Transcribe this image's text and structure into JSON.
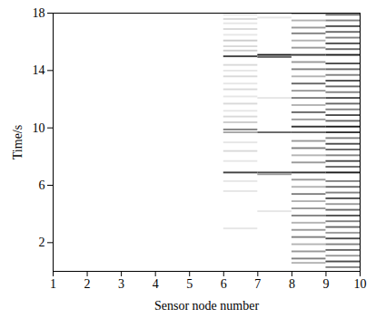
{
  "chart_data": {
    "type": "heatmap",
    "x_label": "Sensor node number",
    "y_label": "Time/s",
    "xlim": [
      1,
      10
    ],
    "xticks": [
      1,
      2,
      3,
      4,
      5,
      6,
      7,
      8,
      9,
      10
    ],
    "ylim": [
      0,
      18
    ],
    "yticks": [
      2,
      6,
      10,
      14,
      18
    ],
    "zlim": [
      0,
      1
    ],
    "grid": false,
    "cells": [
      [
        6,
        7,
        17.8,
        17.92,
        0.1
      ],
      [
        6,
        7,
        17.5,
        17.62,
        0.15
      ],
      [
        6,
        7,
        17.2,
        17.32,
        0.1
      ],
      [
        6,
        7,
        16.8,
        16.92,
        0.15
      ],
      [
        6,
        7,
        16.4,
        16.52,
        0.1
      ],
      [
        6,
        7,
        16.0,
        16.12,
        0.2
      ],
      [
        6,
        7,
        15.6,
        15.72,
        0.15
      ],
      [
        6,
        7,
        15.3,
        15.42,
        0.2
      ],
      [
        6,
        7,
        14.9,
        15.02,
        0.75
      ],
      [
        6,
        7,
        14.3,
        14.42,
        0.15
      ],
      [
        6,
        7,
        13.9,
        14.02,
        0.1
      ],
      [
        6,
        7,
        13.5,
        13.62,
        0.15
      ],
      [
        6,
        7,
        13.0,
        13.12,
        0.1
      ],
      [
        6,
        7,
        12.6,
        12.72,
        0.15
      ],
      [
        6,
        7,
        12.1,
        12.22,
        0.1
      ],
      [
        6,
        7,
        11.6,
        11.72,
        0.15
      ],
      [
        6,
        7,
        11.1,
        11.22,
        0.1
      ],
      [
        6,
        7,
        10.7,
        10.82,
        0.15
      ],
      [
        6,
        7,
        10.3,
        10.42,
        0.2
      ],
      [
        6,
        7,
        9.8,
        9.92,
        0.5
      ],
      [
        6,
        7,
        9.6,
        9.72,
        0.35
      ],
      [
        6,
        7,
        8.9,
        9.02,
        0.1
      ],
      [
        6,
        7,
        8.3,
        8.42,
        0.15
      ],
      [
        6,
        7,
        7.6,
        7.72,
        0.1
      ],
      [
        6,
        7,
        6.8,
        6.92,
        0.75
      ],
      [
        6,
        7,
        6.2,
        6.32,
        0.1
      ],
      [
        6,
        7,
        5.5,
        5.62,
        0.1
      ],
      [
        6,
        7,
        2.9,
        3.02,
        0.1
      ],
      [
        7,
        8,
        17.6,
        17.72,
        0.1
      ],
      [
        7,
        8,
        15.0,
        15.12,
        0.9
      ],
      [
        7,
        8,
        14.85,
        14.97,
        0.6
      ],
      [
        7,
        8,
        12.0,
        12.12,
        0.1
      ],
      [
        7,
        8,
        9.6,
        9.72,
        0.6
      ],
      [
        7,
        8,
        6.8,
        6.92,
        0.7
      ],
      [
        7,
        8,
        6.68,
        6.8,
        0.4
      ],
      [
        7,
        8,
        4.1,
        4.22,
        0.1
      ],
      [
        8,
        9,
        17.9,
        18.0,
        0.5
      ],
      [
        8,
        9,
        17.4,
        17.52,
        0.3
      ],
      [
        8,
        9,
        16.9,
        17.02,
        0.4
      ],
      [
        8,
        9,
        16.5,
        16.62,
        0.5
      ],
      [
        8,
        9,
        16.0,
        16.12,
        0.3
      ],
      [
        8,
        9,
        15.5,
        15.62,
        0.4
      ],
      [
        8,
        9,
        15.0,
        15.12,
        0.8
      ],
      [
        8,
        9,
        14.5,
        14.62,
        0.4
      ],
      [
        8,
        9,
        14.0,
        14.12,
        0.5
      ],
      [
        8,
        9,
        13.5,
        13.62,
        0.3
      ],
      [
        8,
        9,
        13.0,
        13.12,
        0.6
      ],
      [
        8,
        9,
        12.5,
        12.62,
        0.4
      ],
      [
        8,
        9,
        12.0,
        12.12,
        0.5
      ],
      [
        8,
        9,
        11.5,
        11.62,
        0.3
      ],
      [
        8,
        9,
        11.0,
        11.12,
        0.6
      ],
      [
        8,
        9,
        10.5,
        10.62,
        0.4
      ],
      [
        8,
        9,
        10.0,
        10.12,
        0.8
      ],
      [
        8,
        9,
        9.6,
        9.72,
        0.6
      ],
      [
        8,
        9,
        9.0,
        9.12,
        0.4
      ],
      [
        8,
        9,
        8.5,
        8.62,
        0.5
      ],
      [
        8,
        9,
        8.0,
        8.12,
        0.3
      ],
      [
        8,
        9,
        7.5,
        7.62,
        0.4
      ],
      [
        8,
        9,
        6.8,
        6.92,
        0.8
      ],
      [
        8,
        9,
        6.3,
        6.42,
        0.4
      ],
      [
        8,
        9,
        5.8,
        5.92,
        0.3
      ],
      [
        8,
        9,
        5.3,
        5.42,
        0.5
      ],
      [
        8,
        9,
        4.8,
        4.92,
        0.3
      ],
      [
        8,
        9,
        4.3,
        4.42,
        0.4
      ],
      [
        8,
        9,
        3.8,
        3.92,
        0.5
      ],
      [
        8,
        9,
        3.3,
        3.42,
        0.3
      ],
      [
        8,
        9,
        2.8,
        2.92,
        0.4
      ],
      [
        8,
        9,
        2.3,
        2.42,
        0.5
      ],
      [
        8,
        9,
        1.8,
        1.92,
        0.3
      ],
      [
        8,
        9,
        1.3,
        1.42,
        0.4
      ],
      [
        8,
        9,
        0.8,
        0.92,
        0.5
      ],
      [
        8,
        9,
        0.5,
        0.62,
        0.3
      ],
      [
        9,
        10,
        0.2,
        0.32,
        0.5
      ],
      [
        9,
        10,
        0.6,
        0.72,
        0.7
      ],
      [
        9,
        10,
        1.0,
        1.12,
        0.4
      ],
      [
        9,
        10,
        1.4,
        1.52,
        0.6
      ],
      [
        9,
        10,
        1.8,
        1.92,
        0.5
      ],
      [
        9,
        10,
        2.2,
        2.32,
        0.7
      ],
      [
        9,
        10,
        2.6,
        2.72,
        0.4
      ],
      [
        9,
        10,
        3.0,
        3.12,
        0.6
      ],
      [
        9,
        10,
        3.4,
        3.52,
        0.5
      ],
      [
        9,
        10,
        3.8,
        3.92,
        0.7
      ],
      [
        9,
        10,
        4.2,
        4.32,
        0.6
      ],
      [
        9,
        10,
        4.6,
        4.72,
        0.4
      ],
      [
        9,
        10,
        5.0,
        5.12,
        0.7
      ],
      [
        9,
        10,
        5.4,
        5.52,
        0.5
      ],
      [
        9,
        10,
        5.8,
        5.92,
        0.6
      ],
      [
        9,
        10,
        6.2,
        6.32,
        0.5
      ],
      [
        9,
        10,
        6.8,
        6.92,
        0.9
      ],
      [
        9,
        10,
        7.2,
        7.32,
        0.6
      ],
      [
        9,
        10,
        7.6,
        7.72,
        0.7
      ],
      [
        9,
        10,
        8.0,
        8.12,
        0.5
      ],
      [
        9,
        10,
        8.4,
        8.52,
        0.6
      ],
      [
        9,
        10,
        8.8,
        8.92,
        0.7
      ],
      [
        9,
        10,
        9.2,
        9.32,
        0.5
      ],
      [
        9,
        10,
        9.6,
        9.72,
        0.8
      ],
      [
        9,
        10,
        10.0,
        10.12,
        0.9
      ],
      [
        9,
        10,
        10.4,
        10.52,
        0.6
      ],
      [
        9,
        10,
        10.8,
        10.92,
        0.7
      ],
      [
        9,
        10,
        11.2,
        11.32,
        0.5
      ],
      [
        9,
        10,
        11.6,
        11.72,
        0.6
      ],
      [
        9,
        10,
        12.0,
        12.12,
        0.7
      ],
      [
        9,
        10,
        12.4,
        12.52,
        0.5
      ],
      [
        9,
        10,
        12.8,
        12.92,
        0.6
      ],
      [
        9,
        10,
        13.2,
        13.32,
        0.7
      ],
      [
        9,
        10,
        13.6,
        13.72,
        0.5
      ],
      [
        9,
        10,
        14.0,
        14.12,
        0.6
      ],
      [
        9,
        10,
        14.4,
        14.52,
        0.7
      ],
      [
        9,
        10,
        15.0,
        15.12,
        0.9
      ],
      [
        9,
        10,
        15.4,
        15.52,
        0.6
      ],
      [
        9,
        10,
        15.8,
        15.92,
        0.7
      ],
      [
        9,
        10,
        16.2,
        16.32,
        0.5
      ],
      [
        9,
        10,
        16.6,
        16.72,
        0.6
      ],
      [
        9,
        10,
        17.0,
        17.12,
        0.7
      ],
      [
        9,
        10,
        17.4,
        17.52,
        0.5
      ],
      [
        9,
        10,
        17.8,
        17.92,
        0.6
      ]
    ]
  }
}
